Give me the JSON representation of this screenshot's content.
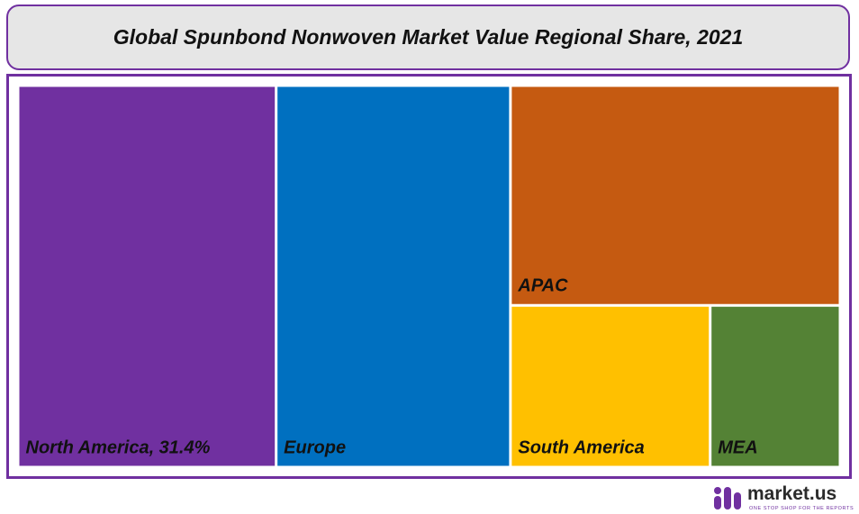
{
  "title": "Global Spunbond Nonwoven Market Value Regional Share, 2021",
  "chart_data": {
    "type": "treemap",
    "title": "Global Spunbond Nonwoven Market Value Regional Share, 2021",
    "labels": [
      {
        "region": "North America",
        "text": "North America, 31.4%"
      },
      {
        "region": "Europe",
        "text": "Europe"
      },
      {
        "region": "APAC",
        "text": "APAC"
      },
      {
        "region": "South America",
        "text": "South America"
      },
      {
        "region": "MEA",
        "text": "MEA"
      }
    ],
    "values": {
      "North America": 31.4,
      "Europe": 28.5,
      "APAC": 23.1,
      "South America": 10.3,
      "MEA": 6.7
    },
    "unit": "%",
    "colors": {
      "North America": "#7030a0",
      "Europe": "#0070c0",
      "APAC": "#c55a11",
      "South America": "#ffc000",
      "MEA": "#548235"
    }
  },
  "logo": {
    "name": "market.us",
    "tagline": "ONE STOP SHOP FOR THE REPORTS"
  }
}
